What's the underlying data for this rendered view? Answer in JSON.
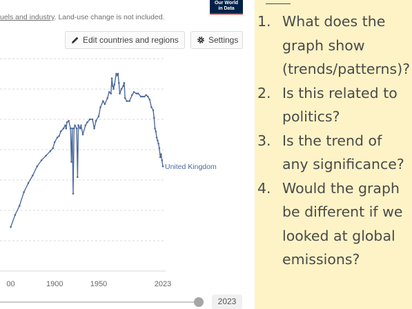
{
  "header": {
    "subtitle_visible": "uels and industry",
    "subtitle_rest": ". Land-use change is not included.",
    "logo_line1": "Our World",
    "logo_line2": "in Data"
  },
  "toolbar": {
    "edit_label": "Edit countries and regions",
    "settings_label": "Settings"
  },
  "chart_data": {
    "type": "line",
    "title": "",
    "xlabel": "",
    "ylabel": "",
    "xlim": [
      1830,
      2023
    ],
    "ylim": [
      0,
      700
    ],
    "grid": true,
    "x_ticks": [
      "00",
      "1900",
      "1950",
      "2023"
    ],
    "x_tick_values": [
      1850,
      1900,
      1950,
      2023
    ],
    "series": [
      {
        "name": "United Kingdom",
        "color": "#4c6a9c",
        "x": [
          1850,
          1855,
          1860,
          1865,
          1870,
          1875,
          1880,
          1885,
          1890,
          1895,
          1898,
          1900,
          1903,
          1905,
          1907,
          1910,
          1912,
          1913,
          1914,
          1916,
          1918,
          1919,
          1920,
          1921,
          1922,
          1923,
          1925,
          1926,
          1927,
          1929,
          1930,
          1932,
          1935,
          1937,
          1940,
          1943,
          1945,
          1947,
          1950,
          1952,
          1955,
          1957,
          1960,
          1962,
          1964,
          1965,
          1966,
          1967,
          1968,
          1970,
          1971,
          1972,
          1973,
          1974,
          1976,
          1978,
          1979,
          1980,
          1982,
          1985,
          1988,
          1990,
          1993,
          1995,
          1998,
          2000,
          2002,
          2004,
          2006,
          2008,
          2010,
          2012,
          2013,
          2014,
          2015,
          2016,
          2017,
          2018,
          2019,
          2020,
          2021,
          2022,
          2023
        ],
        "y": [
          145,
          185,
          215,
          260,
          290,
          315,
          345,
          365,
          380,
          395,
          405,
          425,
          440,
          445,
          460,
          470,
          480,
          470,
          490,
          495,
          470,
          360,
          470,
          255,
          470,
          480,
          470,
          310,
          480,
          470,
          480,
          450,
          480,
          490,
          500,
          500,
          470,
          495,
          510,
          540,
          560,
          550,
          570,
          590,
          585,
          635,
          610,
          600,
          615,
          650,
          645,
          650,
          620,
          585,
          600,
          610,
          620,
          570,
          560,
          560,
          580,
          590,
          585,
          585,
          575,
          575,
          575,
          580,
          575,
          565,
          540,
          530,
          505,
          470,
          460,
          440,
          430,
          420,
          405,
          375,
          385,
          365,
          345
        ]
      }
    ],
    "annotations": [
      "United Kingdom"
    ],
    "timeline_end": "2023"
  },
  "questions": {
    "items": [
      {
        "num": "1.",
        "text": "What does the graph show (trends/patterns)?"
      },
      {
        "num": "2.",
        "text": "Is this related to politics?"
      },
      {
        "num": "3.",
        "text": "Is the trend of any significance?"
      },
      {
        "num": "4.",
        "text": "Would the graph be different if we looked at global emissions?"
      }
    ]
  }
}
